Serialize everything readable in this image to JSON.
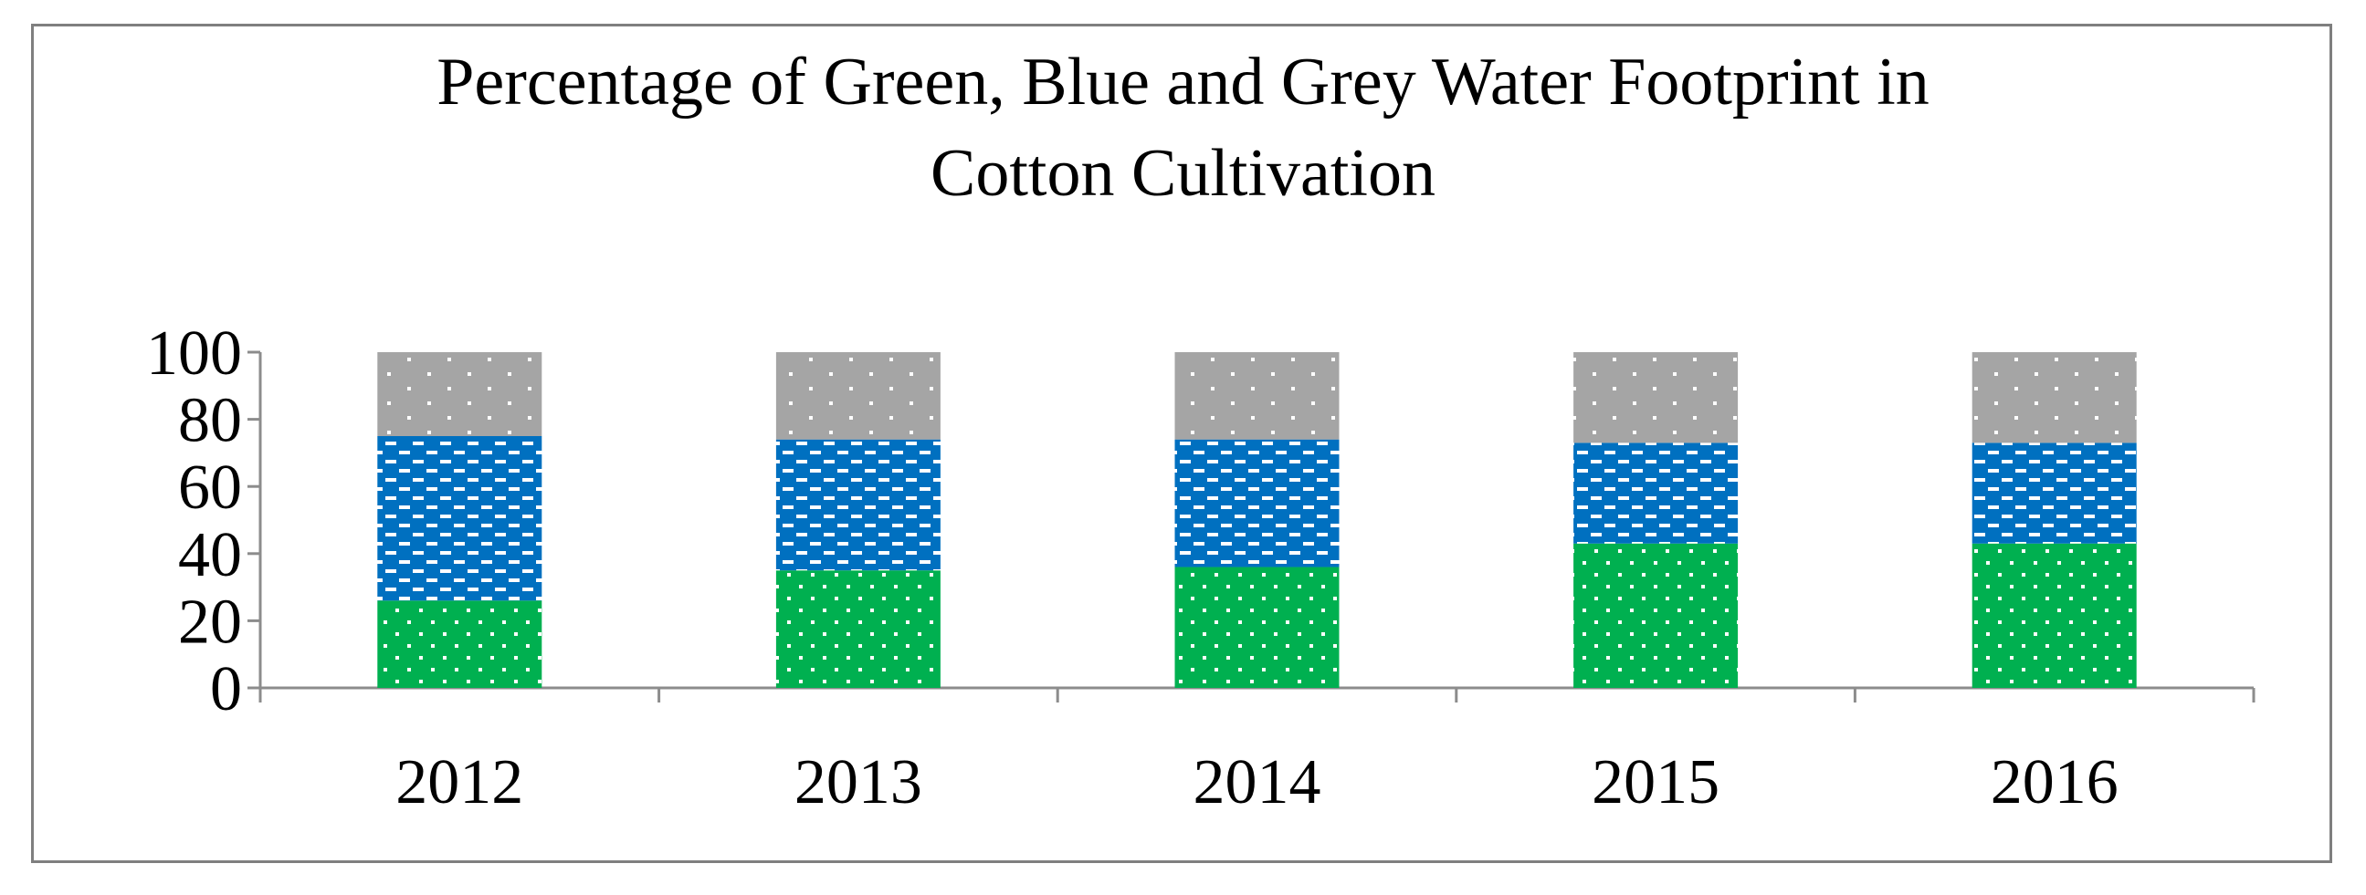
{
  "chart_data": {
    "type": "bar",
    "stacked": true,
    "title": "Percentage of Green, Blue and Grey  Water Footprint in\nCotton Cultivation",
    "categories": [
      "2012",
      "2013",
      "2014",
      "2015",
      "2016"
    ],
    "series": [
      {
        "color": "#00b050",
        "pattern": "dots",
        "values": [
          26,
          35,
          36,
          43,
          43
        ]
      },
      {
        "color": "#0070c0",
        "pattern": "dashes",
        "values": [
          49,
          39,
          38,
          30,
          30
        ]
      },
      {
        "color": "#a5a5a5",
        "pattern": "sparse-dots",
        "values": [
          25,
          26,
          26,
          27,
          27
        ]
      }
    ],
    "ylim": [
      0,
      100
    ],
    "yticks": [
      0,
      20,
      40,
      60,
      80,
      100
    ],
    "grid": false,
    "legend": "none"
  }
}
